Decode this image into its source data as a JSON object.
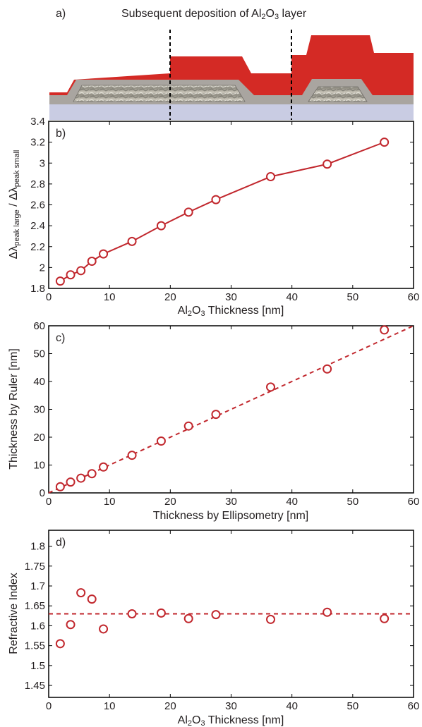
{
  "illustration": {
    "panel_label": "a)",
    "title_prefix": "Subsequent deposition of Al",
    "title_sub": "2",
    "title_mid": "O",
    "title_sub2": "3",
    "title_suffix": " layer",
    "colors": {
      "alumina": "#d42a25",
      "gold_oxide": "#a8a49f",
      "substrate": "#c9cce3",
      "particle": "#8a8a88"
    }
  },
  "chart_data": [
    {
      "panel_label": "b)",
      "type": "line",
      "x": [
        1.9,
        3.6,
        5.3,
        7.1,
        9.0,
        13.7,
        18.5,
        23.0,
        27.5,
        36.5,
        45.8,
        55.2
      ],
      "series": [
        {
          "values": [
            1.87,
            1.93,
            1.97,
            2.06,
            2.13,
            2.25,
            2.4,
            2.53,
            2.65,
            2.87,
            2.99,
            3.2
          ],
          "color": "#c1272d",
          "marker": "circle",
          "line": "solid"
        }
      ],
      "xlim": [
        0,
        60
      ],
      "ylim": [
        1.8,
        3.4
      ],
      "xticks": [
        "0",
        "10",
        "20",
        "30",
        "40",
        "50",
        "60"
      ],
      "yticks": [
        "1.8",
        "2",
        "2.2",
        "2.4",
        "2.6",
        "2.8",
        "3",
        "3.2",
        "3.4"
      ],
      "xlabel": {
        "a": "Al",
        "b": "2",
        "c": "O",
        "d": "3",
        "e": " Thickness [nm]"
      },
      "ylabel": {
        "a": "Δλ",
        "b": "peak large",
        "c": " / Δλ",
        "d": "peak small"
      },
      "grid": false
    },
    {
      "panel_label": "c)",
      "type": "scatter",
      "x": [
        1.9,
        3.6,
        5.3,
        7.1,
        9.0,
        13.7,
        18.5,
        23.0,
        27.5,
        36.5,
        45.8,
        55.2
      ],
      "series": [
        {
          "values": [
            2.2,
            3.9,
            5.3,
            6.9,
            9.3,
            13.5,
            18.6,
            24.0,
            28.2,
            38.0,
            44.5,
            58.5
          ],
          "color": "#c1272d",
          "marker": "circle"
        }
      ],
      "reference_line": {
        "from": [
          0,
          0
        ],
        "to": [
          60,
          60
        ],
        "style": "dashed",
        "color": "#c1272d"
      },
      "xlim": [
        0,
        60
      ],
      "ylim": [
        0,
        60
      ],
      "xticks": [
        "0",
        "10",
        "20",
        "30",
        "40",
        "50",
        "60"
      ],
      "yticks": [
        "0",
        "10",
        "20",
        "30",
        "40",
        "50",
        "60"
      ],
      "xlabel": "Thickness by Ellipsometry [nm]",
      "ylabel": "Thickness by Ruler [nm]",
      "grid": false
    },
    {
      "panel_label": "d)",
      "type": "scatter",
      "x": [
        1.9,
        3.6,
        5.3,
        7.1,
        9.0,
        13.7,
        18.5,
        23.0,
        27.5,
        36.5,
        45.8,
        55.2
      ],
      "series": [
        {
          "values": [
            1.555,
            1.603,
            1.683,
            1.667,
            1.592,
            1.63,
            1.632,
            1.618,
            1.628,
            1.616,
            1.634,
            1.618
          ],
          "color": "#c1272d",
          "marker": "circle"
        }
      ],
      "reference_line": {
        "y": 1.63,
        "style": "dashed",
        "color": "#c1272d"
      },
      "xlim": [
        0,
        60
      ],
      "ylim": [
        1.42,
        1.84
      ],
      "xticks": [
        "0",
        "10",
        "20",
        "30",
        "40",
        "50",
        "60"
      ],
      "yticks": [
        "1.45",
        "1.5",
        "1.55",
        "1.6",
        "1.65",
        "1.7",
        "1.75",
        "1.8"
      ],
      "xlabel": {
        "a": "Al",
        "b": "2",
        "c": "O",
        "d": "3",
        "e": " Thickness [nm]"
      },
      "ylabel": "Refractive Index",
      "grid": false
    }
  ]
}
